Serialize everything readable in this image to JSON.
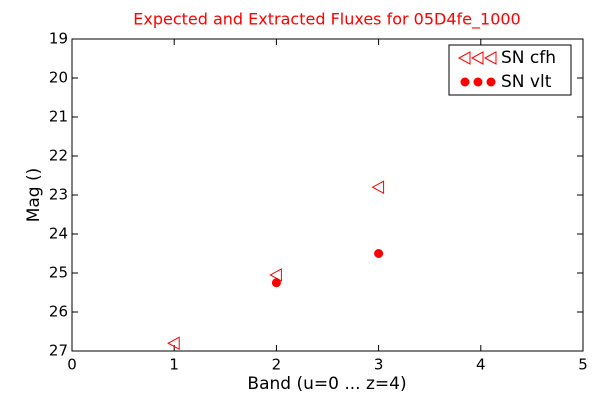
{
  "chart_data": {
    "type": "scatter",
    "title": "Expected and Extracted Fluxes for 05D4fe_1000",
    "xlabel": "Band (u=0 ... z=4)",
    "ylabel": "Mag ()",
    "xlim": [
      0,
      5
    ],
    "xticks": [
      0,
      1,
      2,
      3,
      4,
      5
    ],
    "ylim": [
      27,
      19
    ],
    "yticks": [
      19,
      20,
      21,
      22,
      23,
      24,
      25,
      26,
      27
    ],
    "legend": "upper right",
    "series": [
      {
        "name": "SN cfh",
        "color": "#ff0000",
        "marker": "triangle-left-open",
        "x": [
          1,
          2,
          3
        ],
        "values": [
          26.8,
          25.05,
          22.8
        ]
      },
      {
        "name": "SN vlt",
        "color": "#ff0000",
        "marker": "circle",
        "x": [
          2,
          3
        ],
        "values": [
          25.25,
          24.5
        ]
      }
    ]
  }
}
